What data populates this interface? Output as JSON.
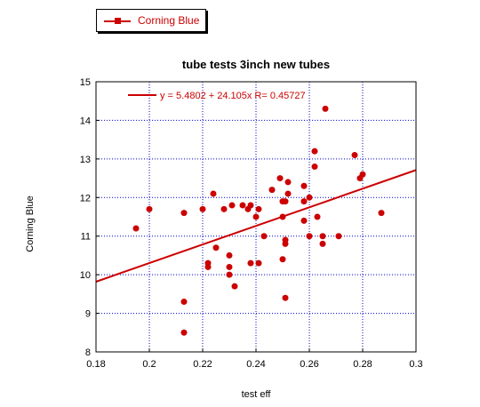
{
  "legend": {
    "label": "Corning Blue",
    "color": "#cc0000"
  },
  "chart_data": {
    "type": "scatter",
    "title": "tube tests 3inch new tubes",
    "xlabel": "test eff",
    "ylabel": "Corning Blue",
    "xlim": [
      0.18,
      0.3
    ],
    "ylim": [
      8,
      15
    ],
    "x_ticks": [
      "0.18",
      "0.2",
      "0.22",
      "0.24",
      "0.26",
      "0.28",
      "0.3"
    ],
    "y_ticks": [
      "8",
      "9",
      "10",
      "11",
      "12",
      "13",
      "14",
      "15"
    ],
    "grid": true,
    "legend_position": "top-left",
    "series": [
      {
        "name": "Corning Blue",
        "color": "#cc0000",
        "points": [
          [
            0.195,
            11.2
          ],
          [
            0.2,
            11.7
          ],
          [
            0.213,
            11.6
          ],
          [
            0.213,
            9.3
          ],
          [
            0.213,
            8.5
          ],
          [
            0.22,
            11.7
          ],
          [
            0.222,
            10.3
          ],
          [
            0.222,
            10.2
          ],
          [
            0.224,
            12.1
          ],
          [
            0.225,
            10.7
          ],
          [
            0.228,
            11.7
          ],
          [
            0.23,
            10.5
          ],
          [
            0.23,
            10.2
          ],
          [
            0.23,
            10.0
          ],
          [
            0.231,
            11.8
          ],
          [
            0.232,
            9.7
          ],
          [
            0.235,
            11.8
          ],
          [
            0.237,
            11.7
          ],
          [
            0.238,
            11.8
          ],
          [
            0.238,
            10.3
          ],
          [
            0.24,
            11.5
          ],
          [
            0.241,
            11.7
          ],
          [
            0.241,
            10.3
          ],
          [
            0.243,
            11.0
          ],
          [
            0.246,
            12.2
          ],
          [
            0.249,
            12.5
          ],
          [
            0.25,
            11.9
          ],
          [
            0.25,
            11.5
          ],
          [
            0.25,
            10.4
          ],
          [
            0.251,
            11.9
          ],
          [
            0.251,
            10.9
          ],
          [
            0.251,
            10.8
          ],
          [
            0.251,
            9.4
          ],
          [
            0.252,
            12.4
          ],
          [
            0.252,
            12.1
          ],
          [
            0.258,
            12.3
          ],
          [
            0.258,
            11.9
          ],
          [
            0.258,
            11.4
          ],
          [
            0.26,
            12.0
          ],
          [
            0.26,
            11.0
          ],
          [
            0.262,
            13.2
          ],
          [
            0.262,
            12.8
          ],
          [
            0.263,
            11.5
          ],
          [
            0.265,
            11.0
          ],
          [
            0.265,
            10.8
          ],
          [
            0.266,
            14.3
          ],
          [
            0.271,
            11.0
          ],
          [
            0.277,
            13.1
          ],
          [
            0.279,
            12.5
          ],
          [
            0.28,
            12.6
          ],
          [
            0.287,
            11.6
          ]
        ]
      }
    ],
    "fit": {
      "label": "y = 5.4802 + 24.105x   R= 0.45727",
      "intercept": 5.4802,
      "slope": 24.105,
      "color": "#cc0000"
    }
  }
}
